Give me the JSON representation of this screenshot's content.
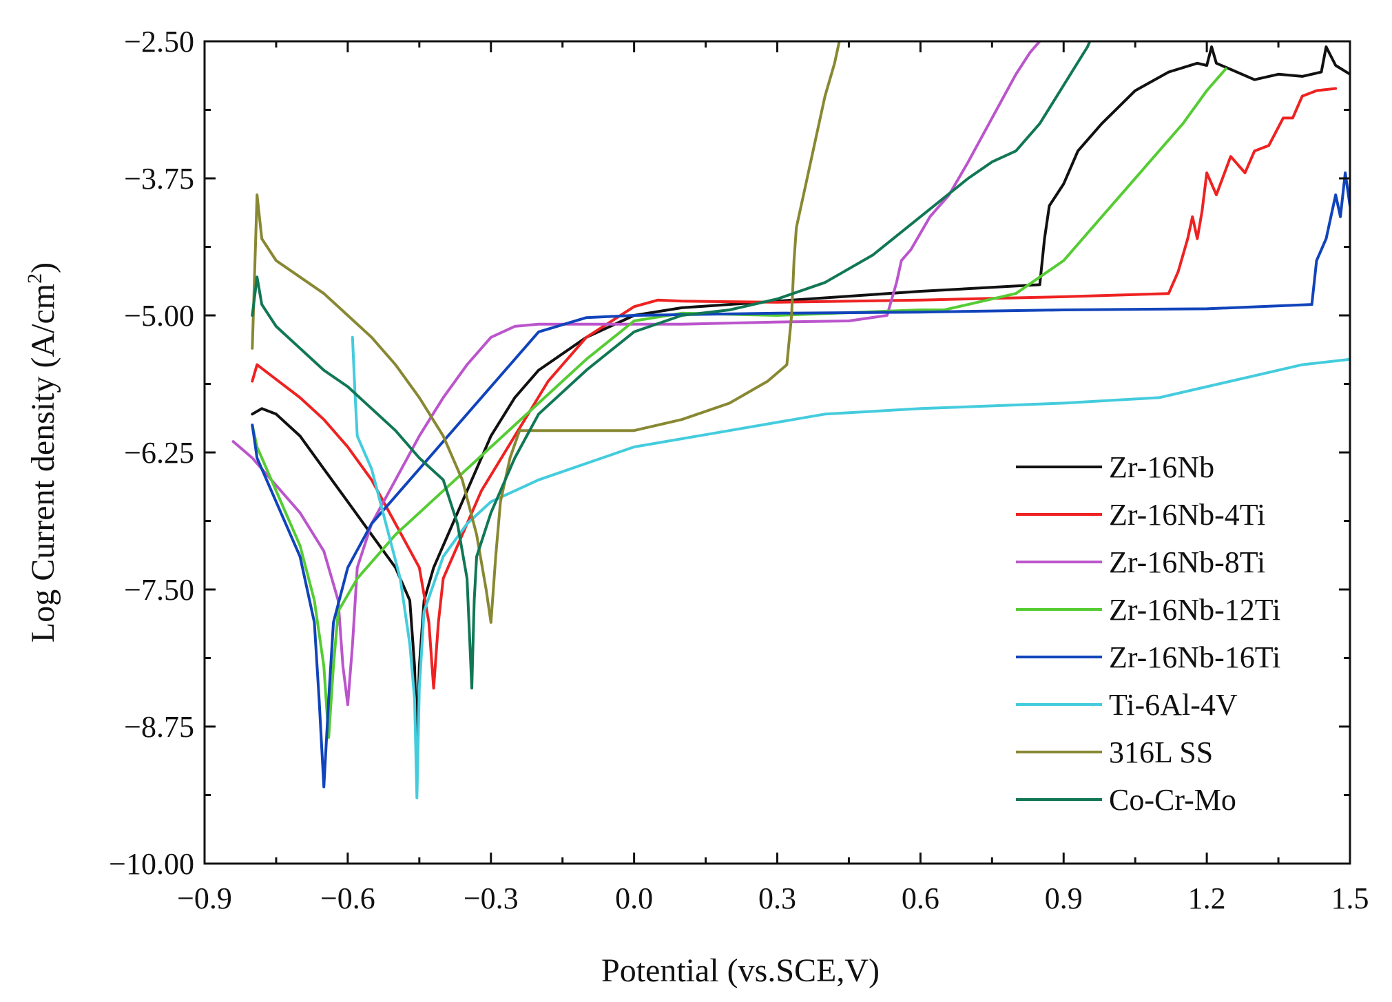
{
  "chart_data": {
    "type": "line",
    "title": "",
    "xlabel": "Potential (vs.SCE,V)",
    "ylabel": "Log Current density (A/cm",
    "ylabel_sup": "2",
    "ylabel_end": ")",
    "xlim": [
      -0.9,
      1.5
    ],
    "ylim": [
      -10.0,
      -2.5
    ],
    "x_ticks": [
      -0.9,
      -0.6,
      -0.3,
      0.0,
      0.3,
      0.6,
      0.9,
      1.2,
      1.5
    ],
    "x_tick_labels": [
      "−0.9",
      "−0.6",
      "−0.3",
      "0.0",
      "0.3",
      "0.6",
      "0.9",
      "1.2",
      "1.5"
    ],
    "y_ticks": [
      -2.5,
      -3.75,
      -5.0,
      -6.25,
      -7.5,
      -8.75,
      -10.0
    ],
    "y_tick_labels": [
      "−2.50",
      "−3.75",
      "−5.00",
      "−6.25",
      "−7.50",
      "−8.75",
      "−10.00"
    ],
    "grid": false,
    "legend_position": "bottom-right",
    "series": [
      {
        "name": "Zr-16Nb",
        "color": "#111111",
        "points": [
          [
            -0.8,
            -5.9
          ],
          [
            -0.78,
            -5.85
          ],
          [
            -0.75,
            -5.9
          ],
          [
            -0.7,
            -6.1
          ],
          [
            -0.65,
            -6.4
          ],
          [
            -0.6,
            -6.7
          ],
          [
            -0.55,
            -7.0
          ],
          [
            -0.5,
            -7.3
          ],
          [
            -0.47,
            -7.6
          ],
          [
            -0.46,
            -8.2
          ],
          [
            -0.455,
            -8.9
          ],
          [
            -0.45,
            -8.2
          ],
          [
            -0.44,
            -7.6
          ],
          [
            -0.42,
            -7.3
          ],
          [
            -0.38,
            -6.9
          ],
          [
            -0.34,
            -6.5
          ],
          [
            -0.3,
            -6.1
          ],
          [
            -0.25,
            -5.75
          ],
          [
            -0.2,
            -5.5
          ],
          [
            -0.1,
            -5.2
          ],
          [
            0.0,
            -5.0
          ],
          [
            0.1,
            -4.93
          ],
          [
            0.3,
            -4.87
          ],
          [
            0.6,
            -4.78
          ],
          [
            0.85,
            -4.72
          ],
          [
            0.86,
            -4.3
          ],
          [
            0.87,
            -4.0
          ],
          [
            0.9,
            -3.8
          ],
          [
            0.93,
            -3.5
          ],
          [
            0.98,
            -3.25
          ],
          [
            1.05,
            -2.95
          ],
          [
            1.12,
            -2.78
          ],
          [
            1.18,
            -2.7
          ],
          [
            1.2,
            -2.72
          ],
          [
            1.21,
            -2.55
          ],
          [
            1.22,
            -2.7
          ],
          [
            1.3,
            -2.85
          ],
          [
            1.35,
            -2.8
          ],
          [
            1.4,
            -2.82
          ],
          [
            1.44,
            -2.78
          ],
          [
            1.45,
            -2.55
          ],
          [
            1.47,
            -2.72
          ],
          [
            1.5,
            -2.8
          ]
        ]
      },
      {
        "name": "Zr-16Nb-4Ti",
        "color": "#ee2222",
        "points": [
          [
            -0.8,
            -5.6
          ],
          [
            -0.79,
            -5.45
          ],
          [
            -0.76,
            -5.55
          ],
          [
            -0.7,
            -5.75
          ],
          [
            -0.65,
            -5.95
          ],
          [
            -0.6,
            -6.2
          ],
          [
            -0.55,
            -6.5
          ],
          [
            -0.5,
            -6.9
          ],
          [
            -0.45,
            -7.3
          ],
          [
            -0.43,
            -7.8
          ],
          [
            -0.42,
            -8.4
          ],
          [
            -0.41,
            -7.8
          ],
          [
            -0.4,
            -7.4
          ],
          [
            -0.36,
            -7.0
          ],
          [
            -0.32,
            -6.6
          ],
          [
            -0.25,
            -6.1
          ],
          [
            -0.18,
            -5.6
          ],
          [
            -0.1,
            -5.2
          ],
          [
            0.0,
            -4.92
          ],
          [
            0.05,
            -4.86
          ],
          [
            0.1,
            -4.87
          ],
          [
            0.3,
            -4.88
          ],
          [
            0.6,
            -4.86
          ],
          [
            0.9,
            -4.83
          ],
          [
            1.12,
            -4.8
          ],
          [
            1.14,
            -4.6
          ],
          [
            1.16,
            -4.3
          ],
          [
            1.17,
            -4.1
          ],
          [
            1.18,
            -4.3
          ],
          [
            1.19,
            -4.05
          ],
          [
            1.2,
            -3.7
          ],
          [
            1.22,
            -3.9
          ],
          [
            1.25,
            -3.55
          ],
          [
            1.28,
            -3.7
          ],
          [
            1.3,
            -3.5
          ],
          [
            1.33,
            -3.45
          ],
          [
            1.36,
            -3.2
          ],
          [
            1.38,
            -3.2
          ],
          [
            1.4,
            -3.0
          ],
          [
            1.43,
            -2.95
          ],
          [
            1.47,
            -2.93
          ]
        ]
      },
      {
        "name": "Zr-16Nb-8Ti",
        "color": "#bb55cc",
        "points": [
          [
            -0.84,
            -6.15
          ],
          [
            -0.8,
            -6.3
          ],
          [
            -0.75,
            -6.55
          ],
          [
            -0.7,
            -6.8
          ],
          [
            -0.65,
            -7.15
          ],
          [
            -0.62,
            -7.6
          ],
          [
            -0.61,
            -8.2
          ],
          [
            -0.6,
            -8.55
          ],
          [
            -0.59,
            -8.0
          ],
          [
            -0.58,
            -7.3
          ],
          [
            -0.55,
            -6.9
          ],
          [
            -0.5,
            -6.5
          ],
          [
            -0.45,
            -6.1
          ],
          [
            -0.4,
            -5.75
          ],
          [
            -0.35,
            -5.45
          ],
          [
            -0.3,
            -5.2
          ],
          [
            -0.25,
            -5.1
          ],
          [
            -0.2,
            -5.08
          ],
          [
            -0.1,
            -5.08
          ],
          [
            0.1,
            -5.08
          ],
          [
            0.3,
            -5.06
          ],
          [
            0.45,
            -5.05
          ],
          [
            0.53,
            -5.0
          ],
          [
            0.55,
            -4.7
          ],
          [
            0.56,
            -4.5
          ],
          [
            0.58,
            -4.4
          ],
          [
            0.62,
            -4.1
          ],
          [
            0.66,
            -3.9
          ],
          [
            0.7,
            -3.6
          ],
          [
            0.75,
            -3.2
          ],
          [
            0.8,
            -2.8
          ],
          [
            0.83,
            -2.6
          ],
          [
            0.86,
            -2.45
          ]
        ]
      },
      {
        "name": "Zr-16Nb-12Ti",
        "color": "#55cc33",
        "points": [
          [
            -0.8,
            -6.0
          ],
          [
            -0.79,
            -6.2
          ],
          [
            -0.75,
            -6.6
          ],
          [
            -0.7,
            -7.1
          ],
          [
            -0.67,
            -7.6
          ],
          [
            -0.65,
            -8.2
          ],
          [
            -0.64,
            -8.85
          ],
          [
            -0.63,
            -8.2
          ],
          [
            -0.62,
            -7.7
          ],
          [
            -0.58,
            -7.4
          ],
          [
            -0.5,
            -7.0
          ],
          [
            -0.4,
            -6.6
          ],
          [
            -0.3,
            -6.2
          ],
          [
            -0.2,
            -5.8
          ],
          [
            -0.1,
            -5.4
          ],
          [
            0.0,
            -5.05
          ],
          [
            0.1,
            -4.98
          ],
          [
            0.3,
            -5.0
          ],
          [
            0.6,
            -4.95
          ],
          [
            0.65,
            -4.95
          ],
          [
            0.7,
            -4.9
          ],
          [
            0.8,
            -4.8
          ],
          [
            0.9,
            -4.5
          ],
          [
            0.95,
            -4.25
          ],
          [
            1.0,
            -4.0
          ],
          [
            1.05,
            -3.75
          ],
          [
            1.1,
            -3.5
          ],
          [
            1.15,
            -3.25
          ],
          [
            1.2,
            -2.95
          ],
          [
            1.24,
            -2.75
          ]
        ]
      },
      {
        "name": "Zr-16Nb-16Ti",
        "color": "#1144bb",
        "points": [
          [
            -0.8,
            -6.0
          ],
          [
            -0.79,
            -6.3
          ],
          [
            -0.75,
            -6.7
          ],
          [
            -0.7,
            -7.2
          ],
          [
            -0.67,
            -7.8
          ],
          [
            -0.66,
            -8.5
          ],
          [
            -0.65,
            -9.3
          ],
          [
            -0.64,
            -8.5
          ],
          [
            -0.63,
            -7.8
          ],
          [
            -0.6,
            -7.3
          ],
          [
            -0.55,
            -6.9
          ],
          [
            -0.45,
            -6.4
          ],
          [
            -0.35,
            -5.9
          ],
          [
            -0.25,
            -5.4
          ],
          [
            -0.2,
            -5.15
          ],
          [
            -0.1,
            -5.02
          ],
          [
            0.0,
            -5.0
          ],
          [
            0.3,
            -4.98
          ],
          [
            0.6,
            -4.97
          ],
          [
            0.9,
            -4.95
          ],
          [
            1.2,
            -4.94
          ],
          [
            1.42,
            -4.9
          ],
          [
            1.43,
            -4.5
          ],
          [
            1.45,
            -4.3
          ],
          [
            1.47,
            -3.9
          ],
          [
            1.48,
            -4.1
          ],
          [
            1.49,
            -3.7
          ],
          [
            1.5,
            -4.0
          ]
        ]
      },
      {
        "name": "Ti-6Al-4V",
        "color": "#44ccdd",
        "points": [
          [
            -0.59,
            -5.2
          ],
          [
            -0.585,
            -5.7
          ],
          [
            -0.58,
            -6.1
          ],
          [
            -0.55,
            -6.4
          ],
          [
            -0.52,
            -6.9
          ],
          [
            -0.49,
            -7.4
          ],
          [
            -0.47,
            -8.0
          ],
          [
            -0.46,
            -8.5
          ],
          [
            -0.455,
            -9.4
          ],
          [
            -0.45,
            -8.4
          ],
          [
            -0.44,
            -7.7
          ],
          [
            -0.4,
            -7.2
          ],
          [
            -0.35,
            -6.9
          ],
          [
            -0.3,
            -6.7
          ],
          [
            -0.2,
            -6.5
          ],
          [
            -0.1,
            -6.35
          ],
          [
            0.0,
            -6.2
          ],
          [
            0.2,
            -6.05
          ],
          [
            0.4,
            -5.9
          ],
          [
            0.6,
            -5.85
          ],
          [
            0.9,
            -5.8
          ],
          [
            1.1,
            -5.75
          ],
          [
            1.2,
            -5.65
          ],
          [
            1.3,
            -5.55
          ],
          [
            1.4,
            -5.45
          ],
          [
            1.5,
            -5.4
          ]
        ]
      },
      {
        "name": "316L SS",
        "color": "#888833",
        "points": [
          [
            -0.8,
            -5.3
          ],
          [
            -0.79,
            -3.9
          ],
          [
            -0.78,
            -4.3
          ],
          [
            -0.75,
            -4.5
          ],
          [
            -0.7,
            -4.65
          ],
          [
            -0.65,
            -4.8
          ],
          [
            -0.6,
            -5.0
          ],
          [
            -0.55,
            -5.2
          ],
          [
            -0.5,
            -5.45
          ],
          [
            -0.45,
            -5.75
          ],
          [
            -0.4,
            -6.1
          ],
          [
            -0.36,
            -6.5
          ],
          [
            -0.33,
            -7.0
          ],
          [
            -0.31,
            -7.5
          ],
          [
            -0.3,
            -7.8
          ],
          [
            -0.29,
            -7.2
          ],
          [
            -0.28,
            -6.7
          ],
          [
            -0.26,
            -6.3
          ],
          [
            -0.24,
            -6.05
          ],
          [
            -0.2,
            -6.05
          ],
          [
            0.0,
            -6.05
          ],
          [
            0.1,
            -5.95
          ],
          [
            0.2,
            -5.8
          ],
          [
            0.28,
            -5.6
          ],
          [
            0.32,
            -5.45
          ],
          [
            0.33,
            -5.0
          ],
          [
            0.335,
            -4.5
          ],
          [
            0.34,
            -4.2
          ],
          [
            0.36,
            -3.8
          ],
          [
            0.38,
            -3.4
          ],
          [
            0.4,
            -3.0
          ],
          [
            0.42,
            -2.7
          ],
          [
            0.43,
            -2.5
          ]
        ]
      },
      {
        "name": "Co-Cr-Mo",
        "color": "#117755",
        "points": [
          [
            -0.8,
            -5.0
          ],
          [
            -0.79,
            -4.65
          ],
          [
            -0.78,
            -4.9
          ],
          [
            -0.75,
            -5.1
          ],
          [
            -0.7,
            -5.3
          ],
          [
            -0.65,
            -5.5
          ],
          [
            -0.6,
            -5.65
          ],
          [
            -0.55,
            -5.85
          ],
          [
            -0.5,
            -6.05
          ],
          [
            -0.45,
            -6.3
          ],
          [
            -0.4,
            -6.5
          ],
          [
            -0.37,
            -6.9
          ],
          [
            -0.35,
            -7.4
          ],
          [
            -0.34,
            -8.4
          ],
          [
            -0.335,
            -7.6
          ],
          [
            -0.33,
            -7.2
          ],
          [
            -0.3,
            -6.8
          ],
          [
            -0.25,
            -6.3
          ],
          [
            -0.2,
            -5.9
          ],
          [
            -0.1,
            -5.5
          ],
          [
            0.0,
            -5.15
          ],
          [
            0.1,
            -5.0
          ],
          [
            0.2,
            -4.95
          ],
          [
            0.3,
            -4.85
          ],
          [
            0.4,
            -4.7
          ],
          [
            0.5,
            -4.45
          ],
          [
            0.6,
            -4.1
          ],
          [
            0.7,
            -3.75
          ],
          [
            0.75,
            -3.6
          ],
          [
            0.8,
            -3.5
          ],
          [
            0.85,
            -3.25
          ],
          [
            0.9,
            -2.9
          ],
          [
            0.95,
            -2.55
          ],
          [
            0.96,
            -2.45
          ]
        ]
      }
    ]
  }
}
